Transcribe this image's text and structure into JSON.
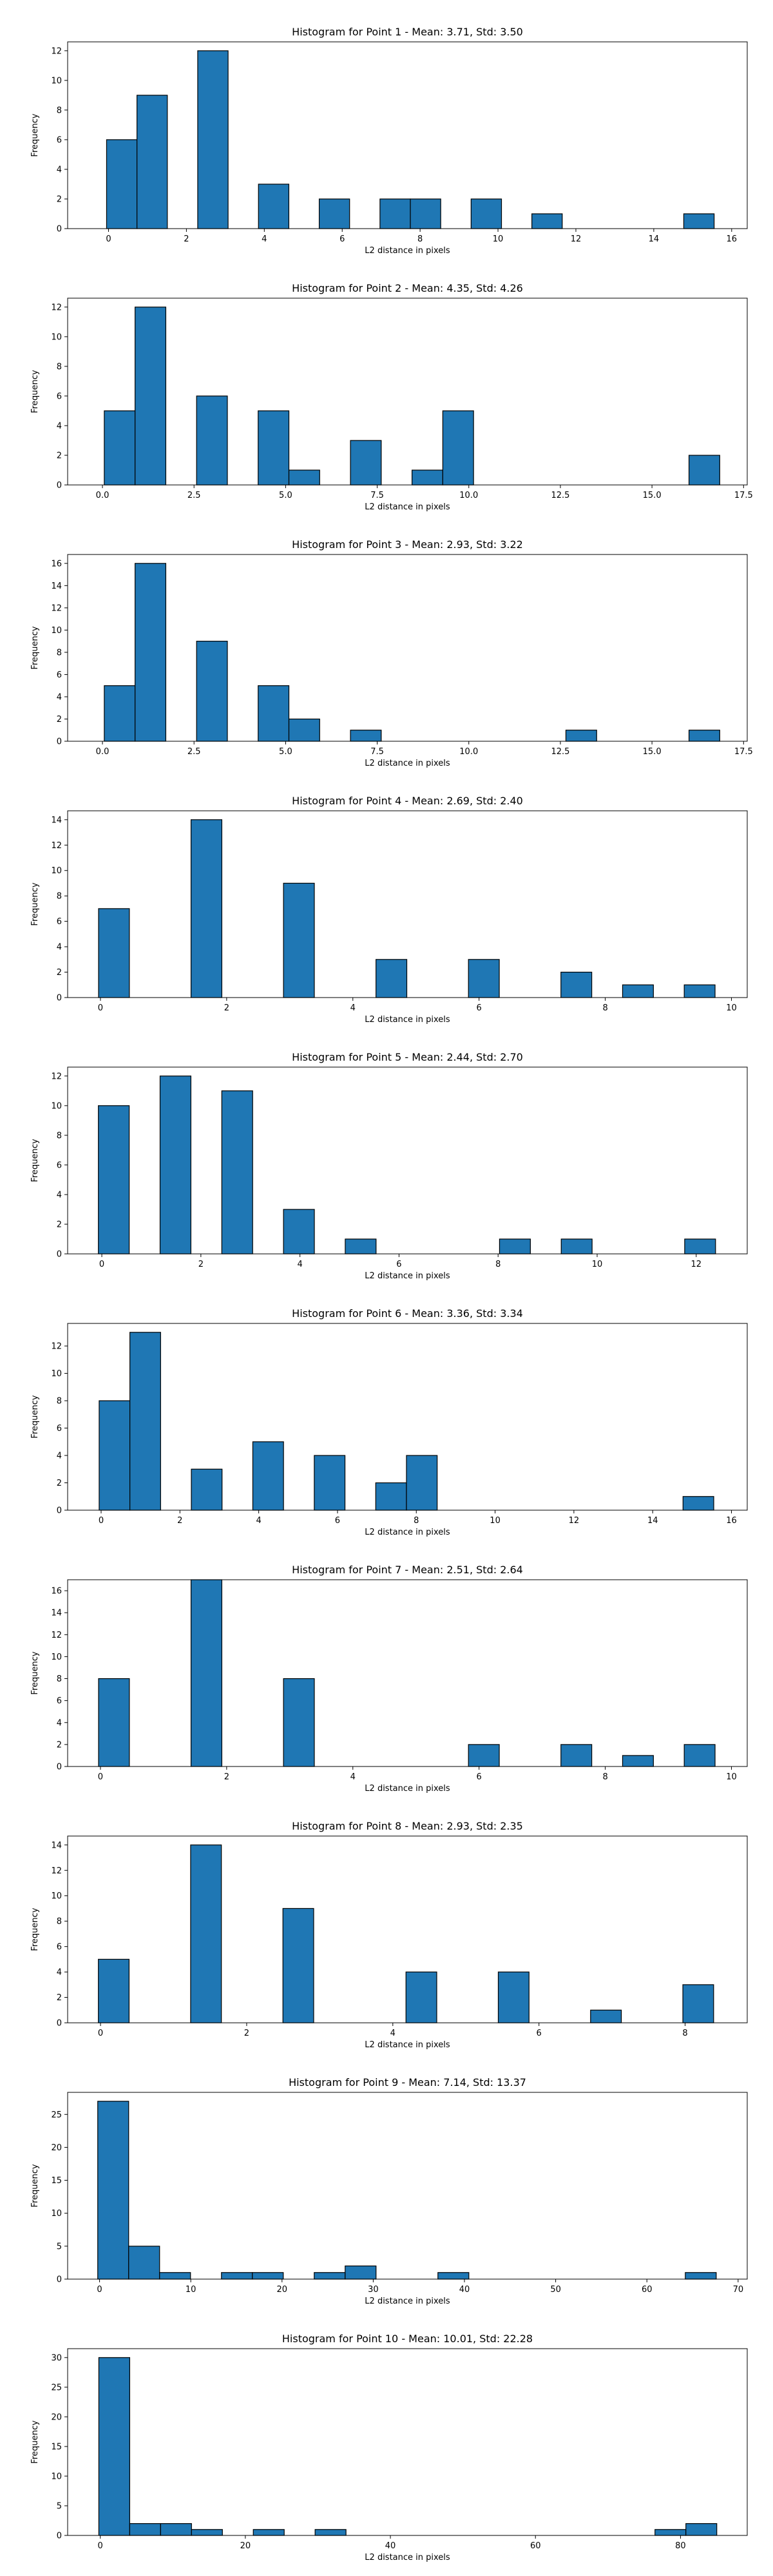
{
  "chart_data": [
    {
      "type": "bar",
      "title": "Histogram for Point 1 - Mean: 3.71, Std: 3.50",
      "xlabel": "L2 distance in pixels",
      "ylabel": "Frequency",
      "xlim": [
        -1.05,
        16.4
      ],
      "ylim": [
        0,
        12.6
      ],
      "xticks": [
        "0",
        "2",
        "4",
        "6",
        "8",
        "10",
        "12",
        "14",
        "16"
      ],
      "xtick_values": [
        0,
        2,
        4,
        6,
        8,
        10,
        12,
        14,
        16
      ],
      "yticks": [
        "0",
        "2",
        "4",
        "6",
        "8",
        "10",
        "12"
      ],
      "ytick_values": [
        0,
        2,
        4,
        6,
        8,
        10,
        12
      ],
      "bin_edges": [
        -0.05,
        0.73,
        1.51,
        2.29,
        3.07,
        3.85,
        4.63,
        5.41,
        6.19,
        6.97,
        7.75,
        8.53,
        9.31,
        10.09,
        10.87,
        11.65,
        12.43,
        13.21,
        13.99,
        14.77,
        15.55
      ],
      "values": [
        6,
        9,
        0,
        12,
        0,
        3,
        0,
        2,
        0,
        2,
        2,
        0,
        2,
        0,
        1,
        0,
        0,
        0,
        0,
        1
      ]
    },
    {
      "type": "bar",
      "title": "Histogram for Point 2 - Mean: 4.35, Std: 4.26",
      "xlabel": "L2 distance in pixels",
      "ylabel": "Frequency",
      "xlim": [
        -0.95,
        17.6
      ],
      "ylim": [
        0,
        12.6
      ],
      "xticks": [
        "0.0",
        "2.5",
        "5.0",
        "7.5",
        "10.0",
        "12.5",
        "15.0",
        "17.5"
      ],
      "xtick_values": [
        0,
        2.5,
        5,
        7.5,
        10,
        12.5,
        15,
        17.5
      ],
      "yticks": [
        "0",
        "2",
        "4",
        "6",
        "8",
        "10",
        "12"
      ],
      "ytick_values": [
        0,
        2,
        4,
        6,
        8,
        10,
        12
      ],
      "bin_edges": [
        0.05,
        0.89,
        1.73,
        2.57,
        3.41,
        4.25,
        5.09,
        5.93,
        6.77,
        7.61,
        8.45,
        9.29,
        10.13,
        10.97,
        11.81,
        12.65,
        13.49,
        14.33,
        15.17,
        16.01,
        16.85
      ],
      "values": [
        5,
        12,
        0,
        6,
        0,
        5,
        1,
        0,
        3,
        0,
        1,
        5,
        0,
        0,
        0,
        0,
        0,
        0,
        0,
        2
      ]
    },
    {
      "type": "bar",
      "title": "Histogram for Point 3 - Mean: 2.93, Std: 3.22",
      "xlabel": "L2 distance in pixels",
      "ylabel": "Frequency",
      "xlim": [
        -0.95,
        17.6
      ],
      "ylim": [
        0,
        16.8
      ],
      "xticks": [
        "0.0",
        "2.5",
        "5.0",
        "7.5",
        "10.0",
        "12.5",
        "15.0",
        "17.5"
      ],
      "xtick_values": [
        0,
        2.5,
        5,
        7.5,
        10,
        12.5,
        15,
        17.5
      ],
      "yticks": [
        "0",
        "2",
        "4",
        "6",
        "8",
        "10",
        "12",
        "14",
        "16"
      ],
      "ytick_values": [
        0,
        2,
        4,
        6,
        8,
        10,
        12,
        14,
        16
      ],
      "bin_edges": [
        0.05,
        0.89,
        1.73,
        2.57,
        3.41,
        4.25,
        5.09,
        5.93,
        6.77,
        7.61,
        8.45,
        9.29,
        10.13,
        10.97,
        11.81,
        12.65,
        13.49,
        14.33,
        15.17,
        16.01,
        16.85
      ],
      "values": [
        5,
        16,
        0,
        9,
        0,
        5,
        2,
        0,
        1,
        0,
        0,
        0,
        0,
        0,
        0,
        1,
        0,
        0,
        0,
        1
      ]
    },
    {
      "type": "bar",
      "title": "Histogram for Point 4 - Mean: 2.69, Std: 2.40",
      "xlabel": "L2 distance in pixels",
      "ylabel": "Frequency",
      "xlim": [
        -0.52,
        10.25
      ],
      "ylim": [
        0,
        14.7
      ],
      "xticks": [
        "0",
        "2",
        "4",
        "6",
        "8",
        "10"
      ],
      "xtick_values": [
        0,
        2,
        4,
        6,
        8,
        10
      ],
      "yticks": [
        "0",
        "2",
        "4",
        "6",
        "8",
        "10",
        "12",
        "14"
      ],
      "ytick_values": [
        0,
        2,
        4,
        6,
        8,
        10,
        12,
        14
      ],
      "bin_edges": [
        -0.03,
        0.4585,
        0.947,
        1.4355,
        1.924,
        2.4125,
        2.901,
        3.3895,
        3.878,
        4.3665,
        4.855,
        5.3435,
        5.832,
        6.3205,
        6.809,
        7.2975,
        7.786,
        8.2745,
        8.763,
        9.2515,
        9.74
      ],
      "values": [
        7,
        0,
        0,
        14,
        0,
        0,
        9,
        0,
        0,
        3,
        0,
        0,
        3,
        0,
        0,
        2,
        0,
        1,
        0,
        1
      ]
    },
    {
      "type": "bar",
      "title": "Histogram for Point 5 - Mean: 2.44, Std: 2.70",
      "xlabel": "L2 distance in pixels",
      "ylabel": "Frequency",
      "xlim": [
        -0.69,
        13.03
      ],
      "ylim": [
        0,
        12.6
      ],
      "xticks": [
        "0",
        "2",
        "4",
        "6",
        "8",
        "10",
        "12"
      ],
      "xtick_values": [
        0,
        2,
        4,
        6,
        8,
        10,
        12
      ],
      "yticks": [
        "0",
        "2",
        "4",
        "6",
        "8",
        "10",
        "12"
      ],
      "ytick_values": [
        0,
        2,
        4,
        6,
        8,
        10,
        12
      ],
      "bin_edges": [
        -0.07,
        0.553,
        1.176,
        1.799,
        2.422,
        3.045,
        3.668,
        4.291,
        4.914,
        5.537,
        6.16,
        6.783,
        7.406,
        8.029,
        8.652,
        9.275,
        9.898,
        10.521,
        11.144,
        11.767,
        12.39
      ],
      "values": [
        10,
        0,
        12,
        0,
        11,
        0,
        3,
        0,
        1,
        0,
        0,
        0,
        0,
        1,
        0,
        1,
        0,
        0,
        0,
        1
      ]
    },
    {
      "type": "bar",
      "title": "Histogram for Point 6 - Mean: 3.36, Std: 3.34",
      "xlabel": "L2 distance in pixels",
      "ylabel": "Frequency",
      "xlim": [
        -0.85,
        16.4
      ],
      "ylim": [
        0,
        13.65
      ],
      "xticks": [
        "0",
        "2",
        "4",
        "6",
        "8",
        "10",
        "12",
        "14",
        "16"
      ],
      "xtick_values": [
        0,
        2,
        4,
        6,
        8,
        10,
        12,
        14,
        16
      ],
      "yticks": [
        "0",
        "2",
        "4",
        "6",
        "8",
        "10",
        "12"
      ],
      "ytick_values": [
        0,
        2,
        4,
        6,
        8,
        10,
        12
      ],
      "bin_edges": [
        -0.05,
        0.73,
        1.51,
        2.29,
        3.07,
        3.85,
        4.63,
        5.41,
        6.19,
        6.97,
        7.75,
        8.53,
        9.31,
        10.09,
        10.87,
        11.65,
        12.43,
        13.21,
        13.99,
        14.77,
        15.55
      ],
      "values": [
        8,
        13,
        0,
        3,
        0,
        5,
        0,
        4,
        0,
        2,
        4,
        0,
        0,
        0,
        0,
        0,
        0,
        0,
        0,
        1
      ]
    },
    {
      "type": "bar",
      "title": "Histogram for Point 7 - Mean: 2.51, Std: 2.64",
      "xlabel": "L2 distance in pixels",
      "ylabel": "Frequency",
      "xlim": [
        -0.52,
        10.25
      ],
      "ylim": [
        0,
        17.0
      ],
      "xticks": [
        "0",
        "2",
        "4",
        "6",
        "8",
        "10"
      ],
      "xtick_values": [
        0,
        2,
        4,
        6,
        8,
        10
      ],
      "yticks": [
        "0",
        "2",
        "4",
        "6",
        "8",
        "10",
        "12",
        "14",
        "16"
      ],
      "ytick_values": [
        0,
        2,
        4,
        6,
        8,
        10,
        12,
        14,
        16
      ],
      "bin_edges": [
        -0.03,
        0.4585,
        0.947,
        1.4355,
        1.924,
        2.4125,
        2.901,
        3.3895,
        3.878,
        4.3665,
        4.855,
        5.3435,
        5.832,
        6.3205,
        6.809,
        7.2975,
        7.786,
        8.2745,
        8.763,
        9.2515,
        9.74
      ],
      "values": [
        8,
        0,
        0,
        17,
        0,
        0,
        8,
        0,
        0,
        0,
        0,
        0,
        2,
        0,
        0,
        2,
        0,
        1,
        0,
        2
      ]
    },
    {
      "type": "bar",
      "title": "Histogram for Point 8 - Mean: 2.93, Std: 2.35",
      "xlabel": "L2 distance in pixels",
      "ylabel": "Frequency",
      "xlim": [
        -0.45,
        8.85
      ],
      "ylim": [
        0,
        14.7
      ],
      "xticks": [
        "0",
        "2",
        "4",
        "6",
        "8"
      ],
      "xtick_values": [
        0,
        2,
        4,
        6,
        8
      ],
      "yticks": [
        "0",
        "2",
        "4",
        "6",
        "8",
        "10",
        "12",
        "14"
      ],
      "ytick_values": [
        0,
        2,
        4,
        6,
        8,
        10,
        12,
        14
      ],
      "bin_edges": [
        -0.03,
        0.391,
        0.812,
        1.233,
        1.654,
        2.075,
        2.496,
        2.917,
        3.338,
        3.759,
        4.18,
        4.601,
        5.022,
        5.443,
        5.864,
        6.285,
        6.706,
        7.127,
        7.548,
        7.969,
        8.39
      ],
      "values": [
        5,
        0,
        0,
        14,
        0,
        0,
        9,
        0,
        0,
        0,
        4,
        0,
        0,
        4,
        0,
        0,
        1,
        0,
        0,
        3
      ]
    },
    {
      "type": "bar",
      "title": "Histogram for Point 9 - Mean: 7.14, Std: 13.37",
      "xlabel": "L2 distance in pixels",
      "ylabel": "Frequency",
      "xlim": [
        -3.5,
        71.0
      ],
      "ylim": [
        0,
        28.35
      ],
      "xticks": [
        "0",
        "10",
        "20",
        "30",
        "40",
        "50",
        "60",
        "70"
      ],
      "xtick_values": [
        0,
        10,
        20,
        30,
        40,
        50,
        60,
        70
      ],
      "yticks": [
        "0",
        "5",
        "10",
        "15",
        "20",
        "25"
      ],
      "ytick_values": [
        0,
        5,
        10,
        15,
        20,
        25
      ],
      "bin_edges": [
        -0.2,
        3.19,
        6.58,
        9.97,
        13.36,
        16.75,
        20.14,
        23.53,
        26.92,
        30.31,
        33.7,
        37.09,
        40.48,
        43.87,
        47.26,
        50.65,
        54.04,
        57.43,
        60.82,
        64.21,
        67.6
      ],
      "values": [
        27,
        5,
        1,
        0,
        1,
        1,
        0,
        1,
        2,
        0,
        0,
        1,
        0,
        0,
        0,
        0,
        0,
        0,
        0,
        1
      ]
    },
    {
      "type": "bar",
      "title": "Histogram for Point 10 - Mean: 10.01, Std: 22.28",
      "xlabel": "L2 distance in pixels",
      "ylabel": "Frequency",
      "xlim": [
        -4.5,
        89.2
      ],
      "ylim": [
        0,
        31.5
      ],
      "xticks": [
        "0",
        "20",
        "40",
        "60",
        "80"
      ],
      "xtick_values": [
        0,
        20,
        40,
        60,
        80
      ],
      "yticks": [
        "0",
        "5",
        "10",
        "15",
        "20",
        "25",
        "30"
      ],
      "ytick_values": [
        0,
        5,
        10,
        15,
        20,
        25,
        30
      ],
      "bin_edges": [
        -0.2,
        4.06,
        8.32,
        12.58,
        16.84,
        21.1,
        25.36,
        29.62,
        33.88,
        38.14,
        42.4,
        46.66,
        50.92,
        55.18,
        59.44,
        63.7,
        67.96,
        72.22,
        76.48,
        80.74,
        85.0
      ],
      "values": [
        30,
        2,
        2,
        1,
        0,
        1,
        0,
        1,
        0,
        0,
        0,
        0,
        0,
        0,
        0,
        0,
        0,
        0,
        1,
        2
      ]
    }
  ]
}
